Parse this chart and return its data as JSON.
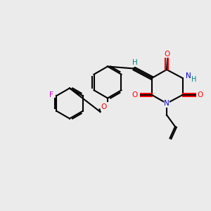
{
  "background_color": "#ebebeb",
  "bond_color": "#000000",
  "atom_colors": {
    "O": "#ff0000",
    "N": "#0000cc",
    "F": "#cc00cc",
    "H": "#008080",
    "C": "#000000"
  },
  "figsize": [
    3.0,
    3.0
  ],
  "dpi": 100
}
